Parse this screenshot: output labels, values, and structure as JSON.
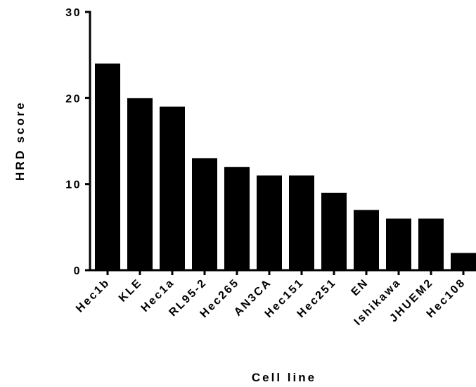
{
  "chart_data": {
    "type": "bar",
    "title": "",
    "xlabel": "Cell line",
    "ylabel": "HRD score",
    "categories": [
      "Hec1b",
      "KLE",
      "Hec1a",
      "RL95-2",
      "Hec265",
      "AN3CA",
      "Hec151",
      "Hec251",
      "EN",
      "Ishikawa",
      "JHUEM2",
      "Hec108"
    ],
    "values": [
      24,
      20,
      19,
      13,
      12,
      11,
      11,
      9,
      7,
      6,
      6,
      2
    ],
    "ylim": [
      0,
      30
    ],
    "yticks": [
      0,
      10,
      20,
      30
    ],
    "grid": false,
    "legend": "none",
    "colors": {
      "bar": "#000000",
      "axis": "#000000",
      "background": "#ffffff"
    }
  }
}
